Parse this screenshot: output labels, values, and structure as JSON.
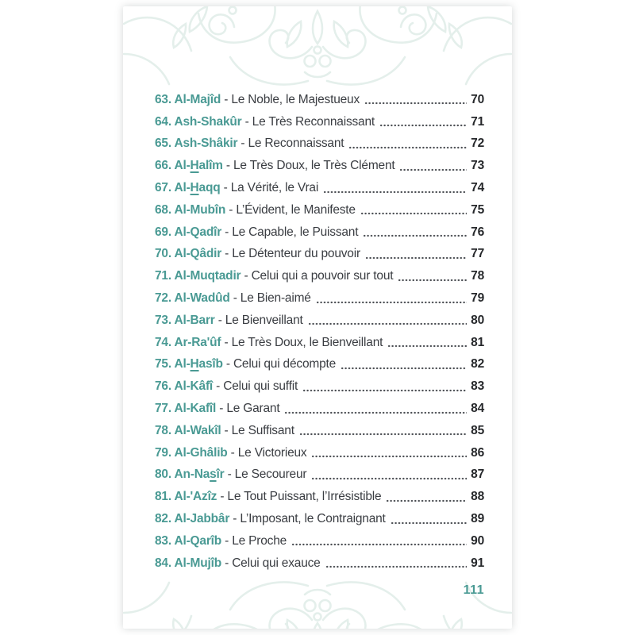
{
  "page": {
    "folio": "111",
    "accent_color": "#4A9A94",
    "text_color": "#3A3D42",
    "page_number_color": "#26282B",
    "dot_color": "#4B4E53",
    "ornament_color": "#E4EFEB"
  },
  "toc": {
    "entries": [
      {
        "num": "63",
        "name": "Al-Majîd",
        "desc": "Le Noble, le Majestueux",
        "page": "70"
      },
      {
        "num": "64",
        "name": "Ash-Shakûr",
        "desc": "Le Très Reconnaissant",
        "page": "71"
      },
      {
        "num": "65",
        "name": "Ash-Shâkir",
        "desc": "Le Reconnaissant",
        "page": "72"
      },
      {
        "num": "66",
        "name": "Al-[H]alîm",
        "desc": "Le Très Doux, le Très Clément",
        "page": "73"
      },
      {
        "num": "67",
        "name": "Al-[H]aqq",
        "desc": "La Vérité, le Vrai",
        "page": "74"
      },
      {
        "num": "68",
        "name": "Al-Mubîn",
        "desc": "L’Évident, le Manifeste",
        "page": "75"
      },
      {
        "num": "69",
        "name": "Al-Qadîr",
        "desc": "Le Capable, le Puissant",
        "page": "76"
      },
      {
        "num": "70",
        "name": "Al-Qâdir",
        "desc": "Le Détenteur du pouvoir",
        "page": "77"
      },
      {
        "num": "71",
        "name": "Al-Muqtadir",
        "desc": "Celui qui a pouvoir sur tout",
        "page": "78"
      },
      {
        "num": "72",
        "name": "Al-Wadûd",
        "desc": "Le Bien-aimé",
        "page": "79"
      },
      {
        "num": "73",
        "name": "Al-Barr",
        "desc": "Le Bienveillant",
        "page": "80"
      },
      {
        "num": "74",
        "name": "Ar-Ra'ûf",
        "desc": "Le Très Doux, le Bienveillant",
        "page": "81"
      },
      {
        "num": "75",
        "name": "Al-[H]asîb",
        "desc": "Celui qui décompte",
        "page": "82"
      },
      {
        "num": "76",
        "name": "Al-Kâfî",
        "desc": "Celui qui suffit",
        "page": "83"
      },
      {
        "num": "77",
        "name": "Al-Kafîl",
        "desc": "Le Garant",
        "page": "84"
      },
      {
        "num": "78",
        "name": "Al-Wakîl",
        "desc": "Le Suffisant",
        "page": "85"
      },
      {
        "num": "79",
        "name": "Al-Ghâlib",
        "desc": "Le Victorieux",
        "page": "86"
      },
      {
        "num": "80",
        "name": "An-Na[s]îr",
        "desc": "Le Secoureur",
        "page": "87"
      },
      {
        "num": "81",
        "name": "Al-'Azîz",
        "desc": "Le Tout Puissant, l’Irrésistible",
        "page": "88"
      },
      {
        "num": "82",
        "name": "Al-Jabbâr",
        "desc": "L’Imposant, le Contraignant",
        "page": "89"
      },
      {
        "num": "83",
        "name": "Al-Qarîb",
        "desc": "Le Proche",
        "page": "90"
      },
      {
        "num": "84",
        "name": "Al-Mujîb",
        "desc": "Celui qui exauce",
        "page": "91"
      }
    ]
  }
}
